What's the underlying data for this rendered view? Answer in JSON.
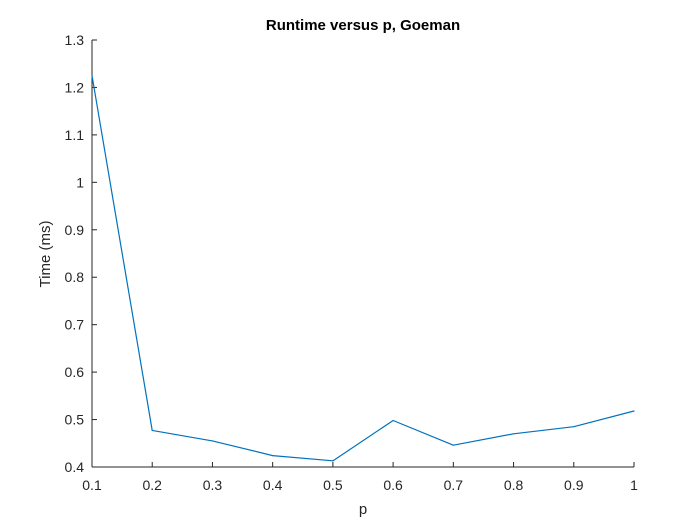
{
  "chart_data": {
    "type": "line",
    "title": "Runtime versus p, Goeman",
    "xlabel": "p",
    "ylabel": "Time (ms)",
    "xlim": [
      0.1,
      1
    ],
    "ylim": [
      0.4,
      1.3
    ],
    "xticks": [
      0.1,
      0.2,
      0.3,
      0.4,
      0.5,
      0.6,
      0.7,
      0.8,
      0.9,
      1
    ],
    "xtick_labels": [
      "0.1",
      "0.2",
      "0.3",
      "0.4",
      "0.5",
      "0.6",
      "0.7",
      "0.8",
      "0.9",
      "1"
    ],
    "yticks": [
      0.4,
      0.5,
      0.6,
      0.7,
      0.8,
      0.9,
      1,
      1.1,
      1.2,
      1.3
    ],
    "ytick_labels": [
      "0.4",
      "0.5",
      "0.6",
      "0.7",
      "0.8",
      "0.9",
      "1",
      "1.1",
      "1.2",
      "1.3"
    ],
    "grid": false,
    "legend": "none",
    "series": [
      {
        "color": "#0072BD",
        "x": [
          0.1,
          0.2,
          0.3,
          0.4,
          0.5,
          0.6,
          0.7,
          0.8,
          0.9,
          1.0
        ],
        "y": [
          1.225,
          0.477,
          0.455,
          0.424,
          0.413,
          0.498,
          0.446,
          0.47,
          0.485,
          0.518
        ]
      }
    ]
  }
}
